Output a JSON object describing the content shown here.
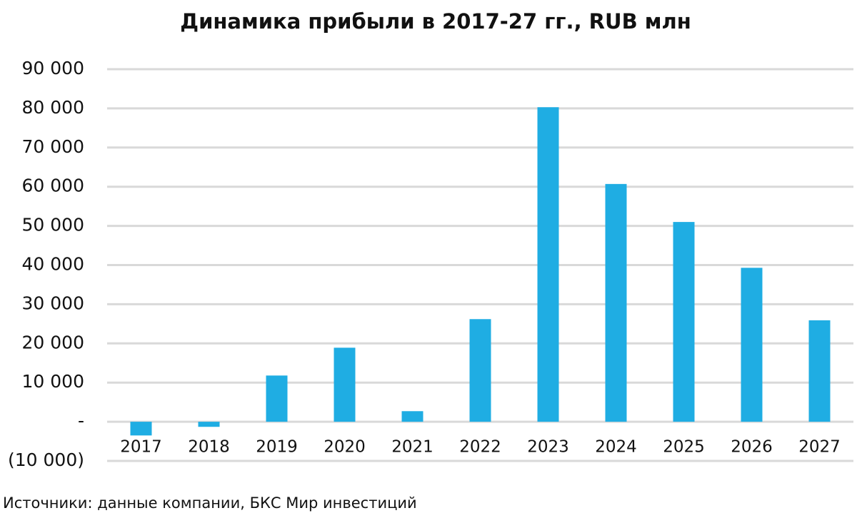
{
  "chart_data": {
    "type": "bar",
    "title": "Динамика прибыли в 2017-27 гг., RUB млн",
    "source": "Источники: данные компании, БКС Мир инвестиций",
    "categories": [
      "2017",
      "2018",
      "2019",
      "2020",
      "2021",
      "2022",
      "2023",
      "2024",
      "2025",
      "2026",
      "2027"
    ],
    "values": [
      -3500,
      -1300,
      11800,
      18900,
      2700,
      26200,
      80300,
      60700,
      51000,
      39300,
      25900
    ],
    "color": "#1fade3",
    "ylim": [
      -10000,
      90000
    ],
    "yticks": [
      {
        "value": -10000,
        "label": "(10 000)"
      },
      {
        "value": 0,
        "label": "-"
      },
      {
        "value": 10000,
        "label": "10 000"
      },
      {
        "value": 20000,
        "label": "20 000"
      },
      {
        "value": 30000,
        "label": "30 000"
      },
      {
        "value": 40000,
        "label": "40 000"
      },
      {
        "value": 50000,
        "label": "50 000"
      },
      {
        "value": 60000,
        "label": "60 000"
      },
      {
        "value": 70000,
        "label": "70 000"
      },
      {
        "value": 80000,
        "label": "80 000"
      },
      {
        "value": 90000,
        "label": "90 000"
      }
    ],
    "grid": true
  }
}
